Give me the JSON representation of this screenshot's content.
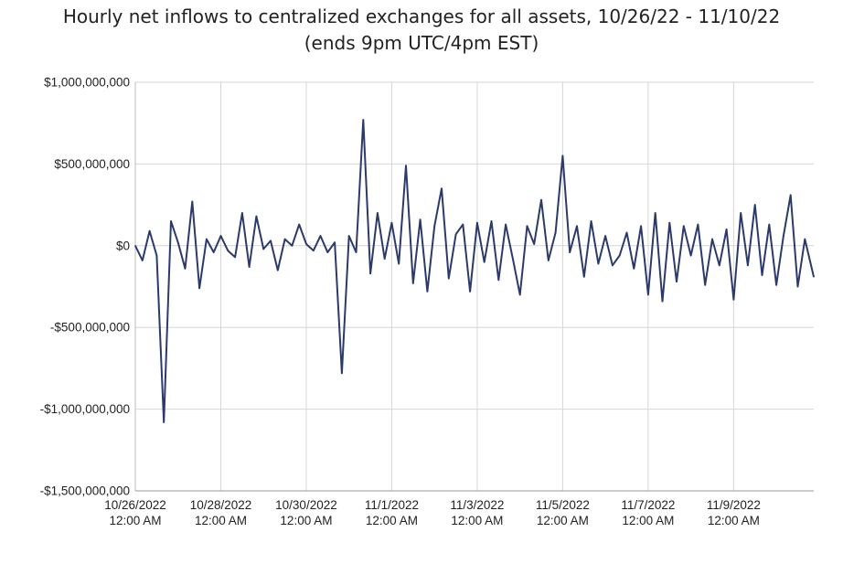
{
  "chart_data": {
    "type": "line",
    "title": "Hourly net inflows to centralized exchanges for all assets, 10/26/22 - 11/10/22",
    "subtitle": "(ends 9pm UTC/4pm EST)",
    "xlabel": "",
    "ylabel": "",
    "ylim": [
      -1500000000,
      1000000000
    ],
    "y_ticks": [
      {
        "value": 1000000000,
        "label": "$1,000,000,000"
      },
      {
        "value": 500000000,
        "label": "$500,000,000"
      },
      {
        "value": 0,
        "label": "$0"
      },
      {
        "value": -500000000,
        "label": "-$500,000,000"
      },
      {
        "value": -1000000000,
        "label": "-$1,000,000,000"
      },
      {
        "value": -1500000000,
        "label": "-$1,500,000,000"
      }
    ],
    "x_ticks": [
      {
        "value": "2022-10-26 00:00",
        "line1": "10/26/2022",
        "line2": "12:00 AM"
      },
      {
        "value": "2022-10-28 00:00",
        "line1": "10/28/2022",
        "line2": "12:00 AM"
      },
      {
        "value": "2022-10-30 00:00",
        "line1": "10/30/2022",
        "line2": "12:00 AM"
      },
      {
        "value": "2022-11-01 00:00",
        "line1": "11/1/2022",
        "line2": "12:00 AM"
      },
      {
        "value": "2022-11-03 00:00",
        "line1": "11/3/2022",
        "line2": "12:00 AM"
      },
      {
        "value": "2022-11-05 00:00",
        "line1": "11/5/2022",
        "line2": "12:00 AM"
      },
      {
        "value": "2022-11-07 00:00",
        "line1": "11/7/2022",
        "line2": "12:00 AM"
      },
      {
        "value": "2022-11-09 00:00",
        "line1": "11/9/2022",
        "line2": "12:00 AM"
      }
    ],
    "xlim": [
      "2022-10-26 00:00",
      "2022-11-10 21:00"
    ],
    "grid": true,
    "legend": "none",
    "line_color": "#2c3a6b",
    "series": [
      {
        "x": [
          "2022-10-26 00:00",
          "2022-10-26 04:00",
          "2022-10-26 08:00",
          "2022-10-26 12:00",
          "2022-10-26 16:00",
          "2022-10-26 20:00",
          "2022-10-27 00:00",
          "2022-10-27 04:00",
          "2022-10-27 08:00",
          "2022-10-27 12:00",
          "2022-10-27 16:00",
          "2022-10-27 20:00",
          "2022-10-28 00:00",
          "2022-10-28 04:00",
          "2022-10-28 08:00",
          "2022-10-28 12:00",
          "2022-10-28 16:00",
          "2022-10-28 20:00",
          "2022-10-29 00:00",
          "2022-10-29 04:00",
          "2022-10-29 08:00",
          "2022-10-29 12:00",
          "2022-10-29 16:00",
          "2022-10-29 20:00",
          "2022-10-30 00:00",
          "2022-10-30 04:00",
          "2022-10-30 08:00",
          "2022-10-30 12:00",
          "2022-10-30 16:00",
          "2022-10-30 20:00",
          "2022-10-31 00:00",
          "2022-10-31 04:00",
          "2022-10-31 08:00",
          "2022-10-31 12:00",
          "2022-10-31 16:00",
          "2022-10-31 20:00",
          "2022-11-01 00:00",
          "2022-11-01 04:00",
          "2022-11-01 08:00",
          "2022-11-01 12:00",
          "2022-11-01 16:00",
          "2022-11-01 20:00",
          "2022-11-02 00:00",
          "2022-11-02 04:00",
          "2022-11-02 08:00",
          "2022-11-02 12:00",
          "2022-11-02 16:00",
          "2022-11-02 20:00",
          "2022-11-03 00:00",
          "2022-11-03 04:00",
          "2022-11-03 08:00",
          "2022-11-03 12:00",
          "2022-11-03 16:00",
          "2022-11-03 20:00",
          "2022-11-04 00:00",
          "2022-11-04 04:00",
          "2022-11-04 08:00",
          "2022-11-04 12:00",
          "2022-11-04 16:00",
          "2022-11-04 20:00",
          "2022-11-05 00:00",
          "2022-11-05 04:00",
          "2022-11-05 08:00",
          "2022-11-05 12:00",
          "2022-11-05 16:00",
          "2022-11-05 20:00",
          "2022-11-06 00:00",
          "2022-11-06 04:00",
          "2022-11-06 08:00",
          "2022-11-06 12:00",
          "2022-11-06 16:00",
          "2022-11-06 20:00",
          "2022-11-07 00:00",
          "2022-11-07 04:00",
          "2022-11-07 08:00",
          "2022-11-07 12:00",
          "2022-11-07 16:00",
          "2022-11-07 20:00",
          "2022-11-08 00:00",
          "2022-11-08 04:00",
          "2022-11-08 08:00",
          "2022-11-08 12:00",
          "2022-11-08 16:00",
          "2022-11-08 20:00",
          "2022-11-09 00:00",
          "2022-11-09 04:00",
          "2022-11-09 08:00",
          "2022-11-09 12:00",
          "2022-11-09 16:00",
          "2022-11-09 20:00",
          "2022-11-10 00:00",
          "2022-11-10 04:00",
          "2022-11-10 08:00",
          "2022-11-10 12:00",
          "2022-11-10 16:00",
          "2022-11-10 21:00"
        ],
        "values": [
          0,
          -90000000,
          90000000,
          -60000000,
          -1080000000,
          150000000,
          20000000,
          -140000000,
          270000000,
          -260000000,
          40000000,
          -40000000,
          60000000,
          -30000000,
          -70000000,
          200000000,
          -130000000,
          180000000,
          -20000000,
          30000000,
          -150000000,
          40000000,
          0,
          130000000,
          10000000,
          -30000000,
          60000000,
          -40000000,
          20000000,
          -780000000,
          60000000,
          -40000000,
          770000000,
          -170000000,
          200000000,
          -80000000,
          140000000,
          -110000000,
          490000000,
          -230000000,
          160000000,
          -280000000,
          120000000,
          350000000,
          -200000000,
          70000000,
          130000000,
          -280000000,
          140000000,
          -100000000,
          150000000,
          -210000000,
          130000000,
          -80000000,
          -300000000,
          120000000,
          10000000,
          280000000,
          -90000000,
          80000000,
          550000000,
          -40000000,
          120000000,
          -190000000,
          150000000,
          -110000000,
          60000000,
          -120000000,
          -60000000,
          80000000,
          -140000000,
          120000000,
          -300000000,
          200000000,
          -340000000,
          140000000,
          -220000000,
          120000000,
          -60000000,
          130000000,
          -240000000,
          40000000,
          -120000000,
          100000000,
          -330000000,
          200000000,
          -120000000,
          250000000,
          -180000000,
          130000000,
          -240000000,
          60000000,
          310000000,
          -250000000,
          40000000,
          -190000000
        ]
      }
    ]
  }
}
